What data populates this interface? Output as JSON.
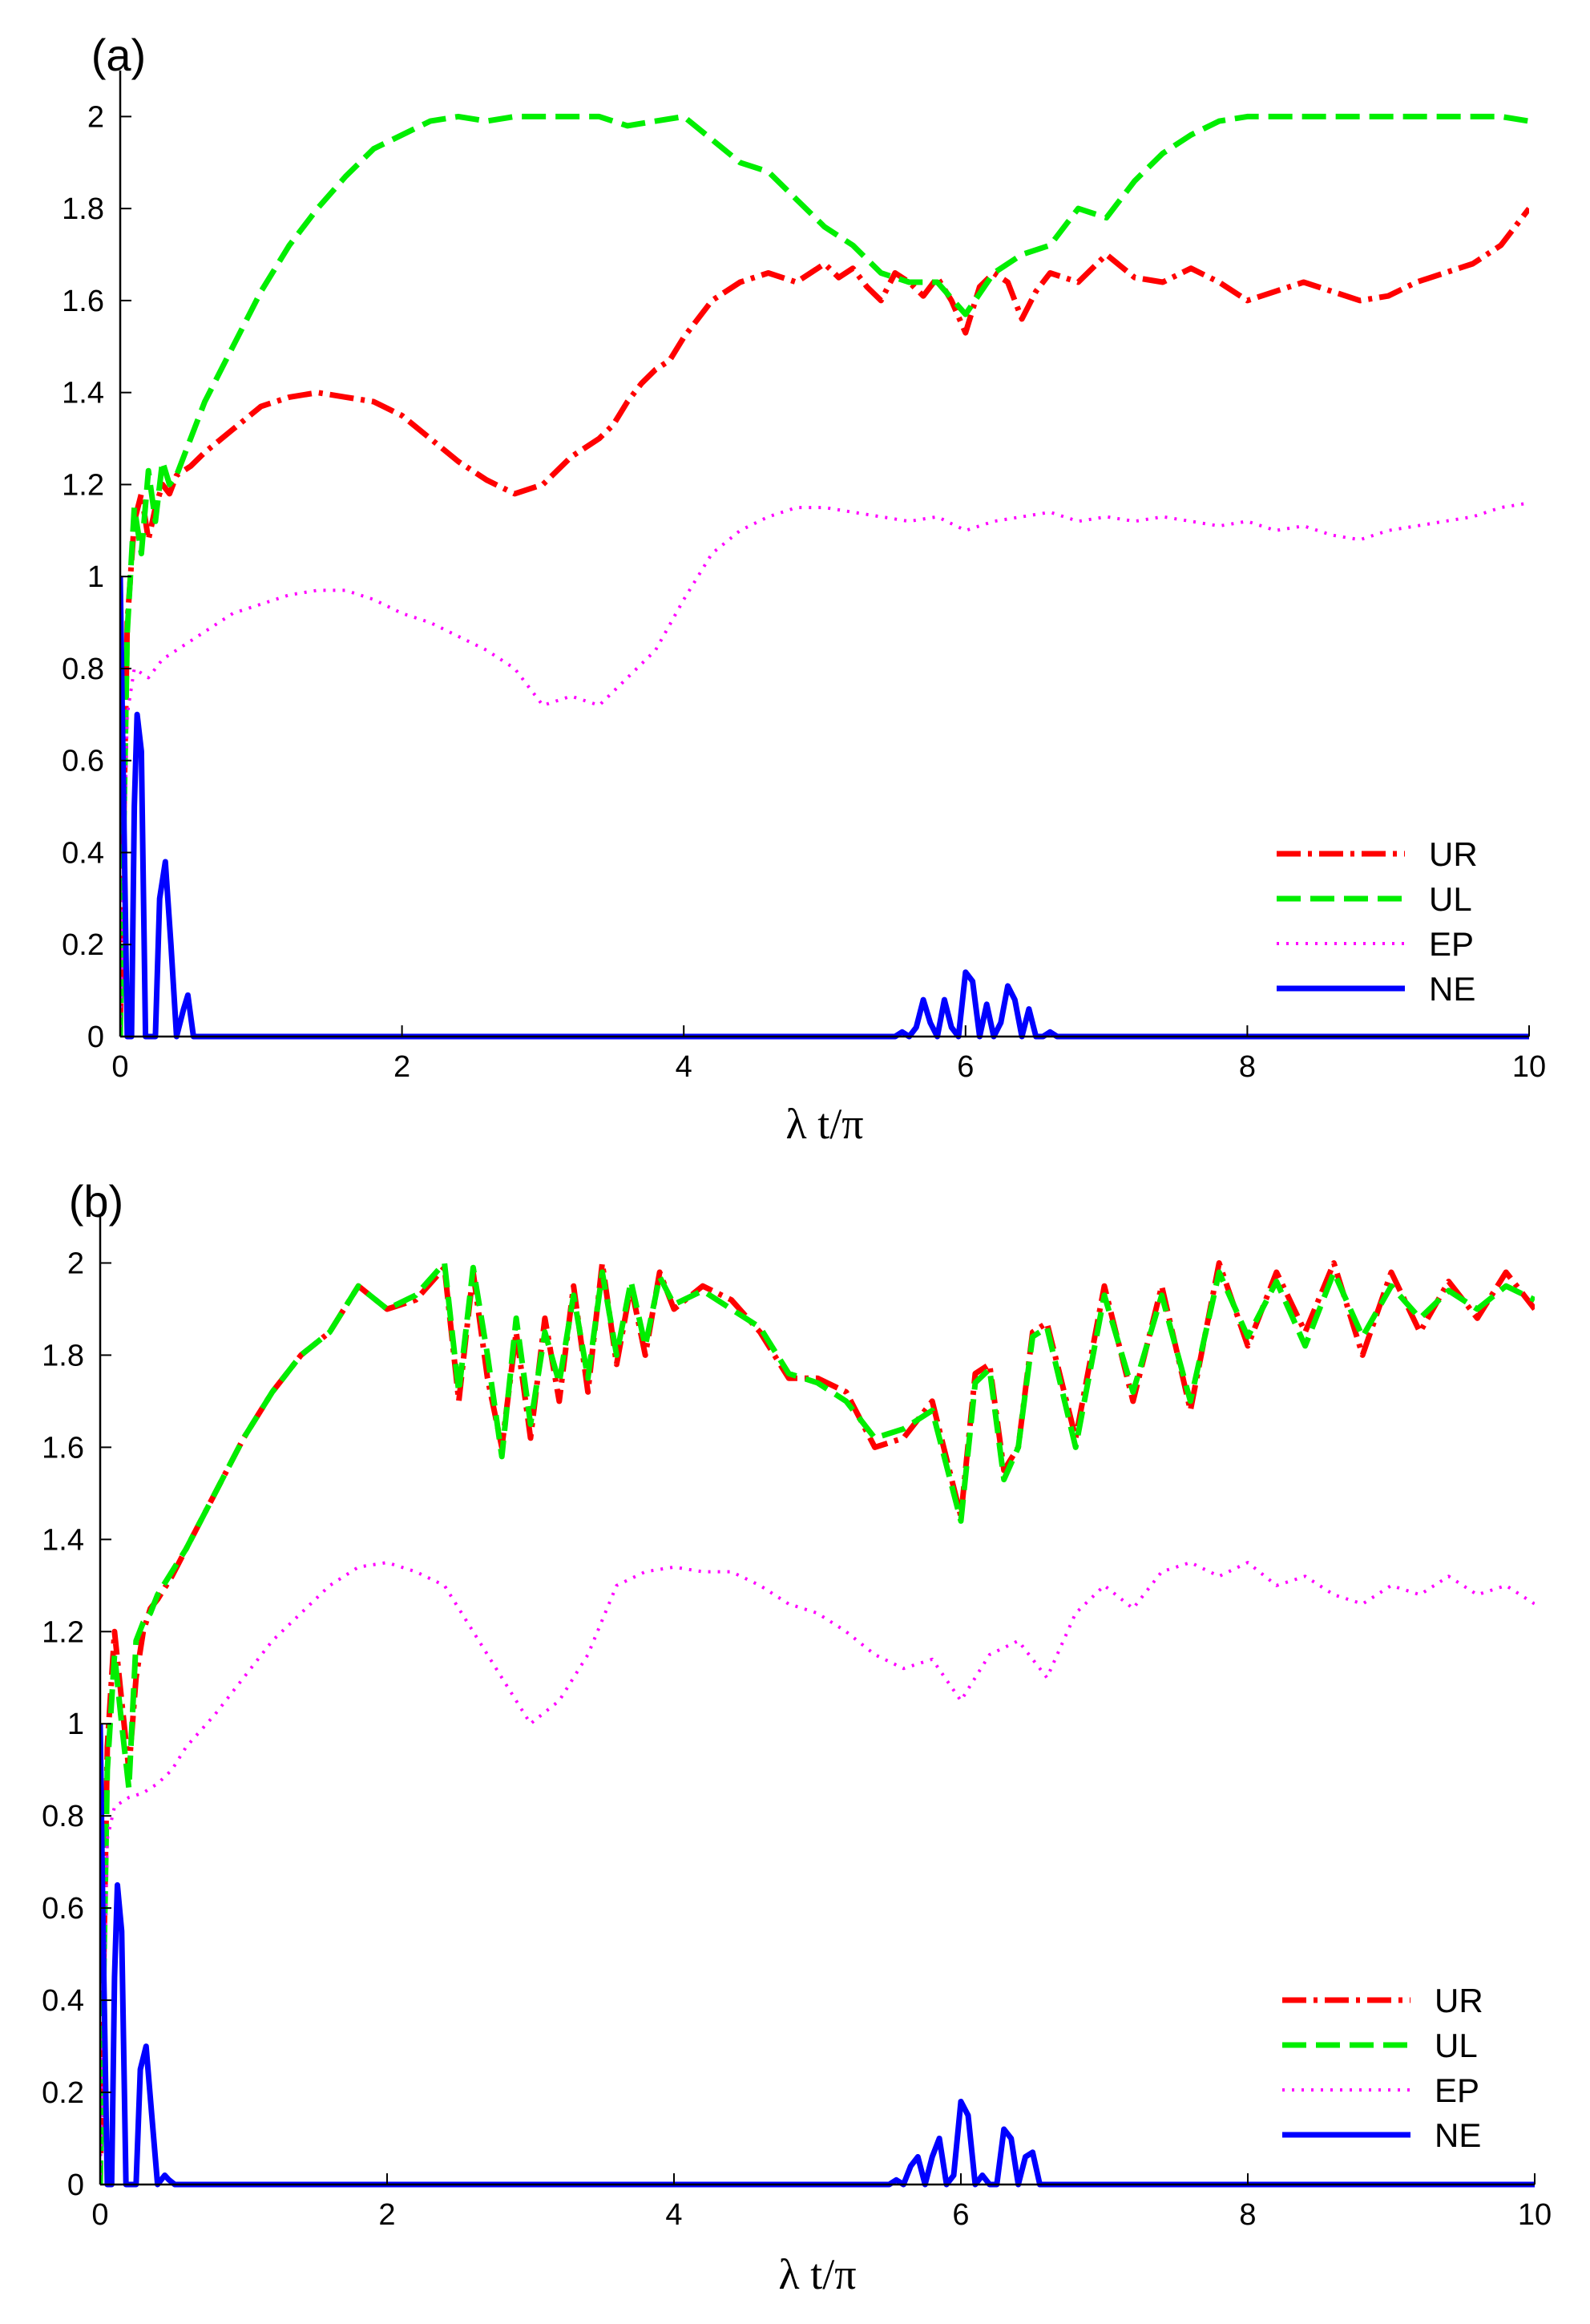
{
  "figure": {
    "title": ""
  },
  "chart_data": [
    {
      "panel": "(a)",
      "type": "line",
      "title": "",
      "xlabel": "λ t/π",
      "ylabel": "",
      "xlim": [
        0,
        10
      ],
      "ylim": [
        0,
        2.1
      ],
      "xticks": [
        0,
        2,
        4,
        6,
        8,
        10
      ],
      "xtick_labels": [
        "0",
        "2",
        "4",
        "6",
        "8",
        "10"
      ],
      "yticks": [
        0,
        0.2,
        0.4,
        0.6,
        0.8,
        1,
        1.2,
        1.4,
        1.6,
        1.8,
        2
      ],
      "ytick_labels": [
        "0",
        "0.2",
        "0.4",
        "0.6",
        "0.8",
        "1",
        "1.2",
        "1.4",
        "1.6",
        "1.8",
        "2"
      ],
      "grid": false,
      "legend_position": "lower-right",
      "series": [
        {
          "name": "UR",
          "color": "#ff0000",
          "style": "dashdot",
          "x": [
            0,
            0.05,
            0.1,
            0.15,
            0.2,
            0.25,
            0.3,
            0.35,
            0.4,
            0.5,
            0.6,
            0.8,
            1.0,
            1.2,
            1.4,
            1.6,
            1.8,
            2.0,
            2.2,
            2.4,
            2.6,
            2.8,
            3.0,
            3.2,
            3.4,
            3.5,
            3.6,
            3.7,
            3.8,
            3.9,
            4.0,
            4.1,
            4.2,
            4.3,
            4.4,
            4.5,
            4.6,
            4.8,
            5.0,
            5.1,
            5.2,
            5.3,
            5.4,
            5.5,
            5.6,
            5.7,
            5.8,
            5.9,
            6.0,
            6.1,
            6.2,
            6.3,
            6.4,
            6.5,
            6.6,
            6.8,
            7.0,
            7.2,
            7.4,
            7.6,
            7.8,
            8.0,
            8.2,
            8.4,
            8.6,
            8.8,
            9.0,
            9.2,
            9.4,
            9.6,
            9.8,
            10.0
          ],
          "values": [
            0.02,
            0.9,
            1.12,
            1.18,
            1.08,
            1.15,
            1.2,
            1.18,
            1.22,
            1.24,
            1.27,
            1.32,
            1.37,
            1.39,
            1.4,
            1.39,
            1.38,
            1.35,
            1.3,
            1.25,
            1.21,
            1.18,
            1.2,
            1.26,
            1.3,
            1.33,
            1.38,
            1.42,
            1.45,
            1.47,
            1.52,
            1.56,
            1.6,
            1.62,
            1.64,
            1.65,
            1.66,
            1.64,
            1.68,
            1.65,
            1.67,
            1.63,
            1.6,
            1.66,
            1.64,
            1.61,
            1.65,
            1.6,
            1.53,
            1.63,
            1.66,
            1.64,
            1.56,
            1.62,
            1.66,
            1.64,
            1.7,
            1.65,
            1.64,
            1.67,
            1.64,
            1.6,
            1.62,
            1.64,
            1.62,
            1.6,
            1.61,
            1.64,
            1.66,
            1.68,
            1.72,
            1.8
          ]
        },
        {
          "name": "UL",
          "color": "#00ee00",
          "style": "dashed",
          "x": [
            0,
            0.05,
            0.1,
            0.15,
            0.2,
            0.25,
            0.3,
            0.35,
            0.4,
            0.5,
            0.6,
            0.8,
            1.0,
            1.2,
            1.4,
            1.6,
            1.8,
            2.0,
            2.2,
            2.4,
            2.6,
            2.8,
            3.0,
            3.2,
            3.4,
            3.6,
            3.8,
            4.0,
            4.2,
            4.4,
            4.6,
            4.8,
            5.0,
            5.2,
            5.4,
            5.6,
            5.8,
            6.0,
            6.2,
            6.4,
            6.6,
            6.8,
            7.0,
            7.2,
            7.4,
            7.6,
            7.8,
            8.0,
            8.2,
            8.4,
            8.6,
            8.8,
            9.0,
            9.2,
            9.4,
            9.6,
            9.8,
            10.0
          ],
          "values": [
            0.0,
            0.88,
            1.15,
            1.05,
            1.23,
            1.12,
            1.25,
            1.2,
            1.22,
            1.3,
            1.38,
            1.5,
            1.62,
            1.72,
            1.8,
            1.87,
            1.93,
            1.96,
            1.99,
            2.0,
            1.99,
            2.0,
            2.0,
            2.0,
            2.0,
            1.98,
            1.99,
            2.0,
            1.95,
            1.9,
            1.88,
            1.82,
            1.76,
            1.72,
            1.66,
            1.64,
            1.64,
            1.57,
            1.66,
            1.7,
            1.72,
            1.8,
            1.78,
            1.86,
            1.92,
            1.96,
            1.99,
            2.0,
            2.0,
            2.0,
            2.0,
            2.0,
            2.0,
            2.0,
            2.0,
            2.0,
            2.0,
            1.99
          ]
        },
        {
          "name": "EP",
          "color": "#ff00ff",
          "style": "dotted",
          "x": [
            0,
            0.05,
            0.1,
            0.2,
            0.3,
            0.4,
            0.5,
            0.6,
            0.8,
            1.0,
            1.2,
            1.4,
            1.6,
            1.8,
            2.0,
            2.2,
            2.4,
            2.6,
            2.8,
            3.0,
            3.2,
            3.4,
            3.6,
            3.8,
            4.0,
            4.2,
            4.4,
            4.6,
            4.8,
            5.0,
            5.2,
            5.4,
            5.6,
            5.8,
            6.0,
            6.2,
            6.4,
            6.6,
            6.8,
            7.0,
            7.2,
            7.4,
            7.6,
            7.8,
            8.0,
            8.2,
            8.4,
            8.6,
            8.8,
            9.0,
            9.2,
            9.4,
            9.6,
            9.8,
            10.0
          ],
          "values": [
            0.02,
            0.7,
            0.8,
            0.78,
            0.82,
            0.84,
            0.86,
            0.88,
            0.92,
            0.94,
            0.96,
            0.97,
            0.97,
            0.95,
            0.92,
            0.9,
            0.87,
            0.84,
            0.8,
            0.72,
            0.74,
            0.72,
            0.78,
            0.84,
            0.95,
            1.05,
            1.1,
            1.13,
            1.15,
            1.15,
            1.14,
            1.13,
            1.12,
            1.13,
            1.1,
            1.12,
            1.13,
            1.14,
            1.12,
            1.13,
            1.12,
            1.13,
            1.12,
            1.11,
            1.12,
            1.1,
            1.11,
            1.09,
            1.08,
            1.1,
            1.11,
            1.12,
            1.13,
            1.15,
            1.16
          ]
        },
        {
          "name": "NE",
          "color": "#0000ff",
          "style": "solid",
          "x": [
            0,
            0.02,
            0.05,
            0.08,
            0.1,
            0.12,
            0.15,
            0.18,
            0.2,
            0.25,
            0.28,
            0.32,
            0.36,
            0.4,
            0.45,
            0.48,
            0.52,
            5.0,
            5.5,
            5.55,
            5.6,
            5.65,
            5.7,
            5.75,
            5.8,
            5.85,
            5.9,
            5.95,
            6.0,
            6.05,
            6.1,
            6.15,
            6.2,
            6.25,
            6.3,
            6.35,
            6.4,
            6.45,
            6.5,
            6.55,
            6.6,
            6.65,
            6.7,
            10.0
          ],
          "values": [
            1.0,
            0.6,
            0.0,
            0.0,
            0.5,
            0.7,
            0.62,
            0.0,
            0.0,
            0.0,
            0.3,
            0.38,
            0.2,
            0.0,
            0.06,
            0.09,
            0.0,
            0.0,
            0.0,
            0.01,
            0.0,
            0.02,
            0.08,
            0.03,
            0.0,
            0.08,
            0.02,
            0.0,
            0.14,
            0.12,
            0.0,
            0.07,
            0.0,
            0.03,
            0.11,
            0.08,
            0.0,
            0.06,
            0.0,
            0.0,
            0.01,
            0.0,
            0.0,
            0.0
          ]
        }
      ]
    },
    {
      "panel": "(b)",
      "type": "line",
      "title": "",
      "xlabel": "λ t/π",
      "ylabel": "",
      "xlim": [
        0,
        10
      ],
      "ylim": [
        0,
        2.1
      ],
      "xticks": [
        0,
        2,
        4,
        6,
        8,
        10
      ],
      "xtick_labels": [
        "0",
        "2",
        "4",
        "6",
        "8",
        "10"
      ],
      "yticks": [
        0,
        0.2,
        0.4,
        0.6,
        0.8,
        1,
        1.2,
        1.4,
        1.6,
        1.8,
        2
      ],
      "ytick_labels": [
        "0",
        "0.2",
        "0.4",
        "0.6",
        "0.8",
        "1",
        "1.2",
        "1.4",
        "1.6",
        "1.8",
        "2"
      ],
      "grid": false,
      "legend_position": "lower-right",
      "series": [
        {
          "name": "UR",
          "color": "#ff0000",
          "style": "dashdot",
          "x": [
            0,
            0.05,
            0.1,
            0.15,
            0.2,
            0.25,
            0.3,
            0.35,
            0.4,
            0.5,
            0.6,
            0.8,
            1.0,
            1.2,
            1.4,
            1.6,
            1.8,
            2.0,
            2.2,
            2.4,
            2.5,
            2.6,
            2.7,
            2.8,
            2.9,
            3.0,
            3.1,
            3.2,
            3.3,
            3.4,
            3.5,
            3.6,
            3.7,
            3.8,
            3.9,
            4.0,
            4.2,
            4.4,
            4.6,
            4.8,
            5.0,
            5.2,
            5.4,
            5.6,
            5.8,
            6.0,
            6.1,
            6.2,
            6.3,
            6.4,
            6.5,
            6.6,
            6.8,
            7.0,
            7.2,
            7.4,
            7.6,
            7.8,
            8.0,
            8.2,
            8.4,
            8.6,
            8.8,
            9.0,
            9.2,
            9.4,
            9.6,
            9.8,
            10.0
          ],
          "values": [
            0.0,
            0.95,
            1.2,
            1.05,
            0.9,
            1.1,
            1.2,
            1.25,
            1.27,
            1.32,
            1.38,
            1.5,
            1.62,
            1.72,
            1.8,
            1.85,
            1.95,
            1.9,
            1.92,
            1.99,
            1.7,
            1.98,
            1.75,
            1.6,
            1.85,
            1.62,
            1.88,
            1.7,
            1.95,
            1.72,
            2.0,
            1.78,
            1.95,
            1.8,
            1.98,
            1.9,
            1.95,
            1.92,
            1.85,
            1.75,
            1.75,
            1.72,
            1.6,
            1.62,
            1.7,
            1.45,
            1.76,
            1.78,
            1.55,
            1.6,
            1.85,
            1.87,
            1.62,
            1.95,
            1.7,
            1.95,
            1.68,
            2.0,
            1.82,
            1.98,
            1.85,
            2.0,
            1.8,
            1.98,
            1.85,
            1.96,
            1.88,
            1.98,
            1.9
          ]
        },
        {
          "name": "UL",
          "color": "#00ee00",
          "style": "dashed",
          "x": [
            0,
            0.05,
            0.1,
            0.15,
            0.2,
            0.25,
            0.3,
            0.35,
            0.4,
            0.5,
            0.6,
            0.8,
            1.0,
            1.2,
            1.4,
            1.6,
            1.8,
            2.0,
            2.2,
            2.4,
            2.5,
            2.6,
            2.7,
            2.8,
            2.9,
            3.0,
            3.1,
            3.2,
            3.3,
            3.4,
            3.5,
            3.6,
            3.7,
            3.8,
            3.9,
            4.0,
            4.2,
            4.4,
            4.6,
            4.8,
            5.0,
            5.2,
            5.4,
            5.6,
            5.8,
            6.0,
            6.1,
            6.2,
            6.3,
            6.4,
            6.5,
            6.6,
            6.8,
            7.0,
            7.2,
            7.4,
            7.6,
            7.8,
            8.0,
            8.2,
            8.4,
            8.6,
            8.8,
            9.0,
            9.2,
            9.4,
            9.6,
            9.8,
            10.0
          ],
          "values": [
            0.0,
            0.9,
            1.15,
            1.0,
            0.86,
            1.18,
            1.22,
            1.24,
            1.28,
            1.33,
            1.38,
            1.5,
            1.62,
            1.72,
            1.8,
            1.85,
            1.95,
            1.9,
            1.93,
            2.0,
            1.72,
            1.99,
            1.8,
            1.58,
            1.88,
            1.65,
            1.85,
            1.74,
            1.93,
            1.75,
            1.98,
            1.8,
            1.96,
            1.82,
            1.97,
            1.91,
            1.94,
            1.9,
            1.86,
            1.76,
            1.74,
            1.7,
            1.62,
            1.64,
            1.68,
            1.44,
            1.74,
            1.77,
            1.53,
            1.6,
            1.84,
            1.86,
            1.6,
            1.93,
            1.72,
            1.93,
            1.7,
            1.98,
            1.84,
            1.96,
            1.82,
            1.98,
            1.84,
            1.95,
            1.88,
            1.94,
            1.9,
            1.95,
            1.92
          ]
        },
        {
          "name": "EP",
          "color": "#ff00ff",
          "style": "dotted",
          "x": [
            0,
            0.05,
            0.1,
            0.2,
            0.3,
            0.4,
            0.5,
            0.6,
            0.8,
            1.0,
            1.2,
            1.4,
            1.6,
            1.8,
            2.0,
            2.2,
            2.4,
            2.6,
            2.8,
            3.0,
            3.2,
            3.4,
            3.6,
            3.8,
            4.0,
            4.2,
            4.4,
            4.6,
            4.8,
            5.0,
            5.2,
            5.4,
            5.6,
            5.8,
            6.0,
            6.2,
            6.4,
            6.6,
            6.8,
            7.0,
            7.2,
            7.4,
            7.6,
            7.8,
            8.0,
            8.2,
            8.4,
            8.6,
            8.8,
            9.0,
            9.2,
            9.4,
            9.6,
            9.8,
            10.0
          ],
          "values": [
            0.02,
            0.75,
            0.82,
            0.84,
            0.85,
            0.87,
            0.9,
            0.95,
            1.02,
            1.1,
            1.18,
            1.24,
            1.3,
            1.34,
            1.35,
            1.33,
            1.3,
            1.2,
            1.1,
            1.0,
            1.05,
            1.15,
            1.3,
            1.33,
            1.34,
            1.33,
            1.33,
            1.3,
            1.26,
            1.24,
            1.2,
            1.15,
            1.12,
            1.14,
            1.05,
            1.15,
            1.18,
            1.1,
            1.24,
            1.3,
            1.25,
            1.33,
            1.35,
            1.32,
            1.35,
            1.3,
            1.32,
            1.28,
            1.26,
            1.3,
            1.28,
            1.32,
            1.28,
            1.3,
            1.26
          ]
        },
        {
          "name": "NE",
          "color": "#0000ff",
          "style": "solid",
          "x": [
            0,
            0.02,
            0.05,
            0.08,
            0.1,
            0.12,
            0.15,
            0.18,
            0.2,
            0.25,
            0.28,
            0.32,
            0.36,
            0.4,
            0.45,
            0.48,
            0.52,
            5.0,
            5.5,
            5.55,
            5.6,
            5.65,
            5.7,
            5.75,
            5.8,
            5.85,
            5.9,
            5.95,
            6.0,
            6.05,
            6.1,
            6.15,
            6.2,
            6.25,
            6.3,
            6.35,
            6.4,
            6.45,
            6.5,
            6.55,
            6.6,
            10.0
          ],
          "values": [
            1.0,
            0.55,
            0.0,
            0.0,
            0.45,
            0.65,
            0.55,
            0.0,
            0.0,
            0.0,
            0.25,
            0.3,
            0.15,
            0.0,
            0.02,
            0.01,
            0.0,
            0.0,
            0.0,
            0.01,
            0.0,
            0.04,
            0.06,
            0.0,
            0.06,
            0.1,
            0.0,
            0.02,
            0.18,
            0.15,
            0.0,
            0.02,
            0.0,
            0.0,
            0.12,
            0.1,
            0.0,
            0.06,
            0.07,
            0.0,
            0.0,
            0.0
          ]
        }
      ]
    }
  ]
}
